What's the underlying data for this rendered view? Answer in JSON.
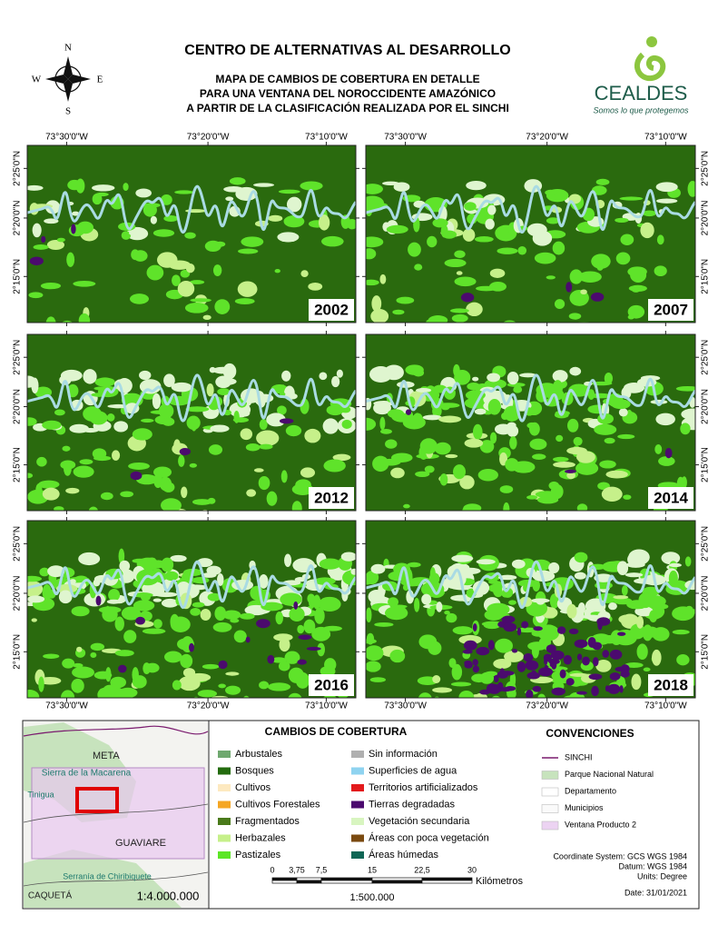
{
  "header": {
    "title": "CENTRO DE ALTERNATIVAS AL DESARROLLO",
    "subtitle": [
      "MAPA DE CAMBIOS DE COBERTURA EN DETALLE",
      "PARA UNA VENTANA DEL NOROCCIDENTE AMAZÓNICO",
      "A PARTIR DE LA CLASIFICACIÓN REALIZADA POR EL SINCHI"
    ]
  },
  "compass": {
    "n": "N",
    "s": "S",
    "e": "E",
    "w": "W"
  },
  "logo": {
    "name": "CEALDES",
    "slogan": "Somos lo que protegemos"
  },
  "maps": {
    "longitude_labels": [
      "73°30'0\"W",
      "73°20'0\"W",
      "73°10'0\"W"
    ],
    "latitude_labels": [
      "2°25'0\"N",
      "2°20'0\"N",
      "2°15'0\"N"
    ],
    "panels": [
      {
        "year": "2002"
      },
      {
        "year": "2007"
      },
      {
        "year": "2012"
      },
      {
        "year": "2014"
      },
      {
        "year": "2016"
      },
      {
        "year": "2018"
      }
    ]
  },
  "legend": {
    "title": "CAMBIOS DE COBERTURA",
    "items": [
      {
        "label": "Arbustales",
        "color": "#6fa86f"
      },
      {
        "label": "Bosques",
        "color": "#236b0e"
      },
      {
        "label": "Cultivos",
        "color": "#fde9c0"
      },
      {
        "label": "Cultivos Forestales",
        "color": "#f5a623"
      },
      {
        "label": "Fragmentados",
        "color": "#4a7a1a"
      },
      {
        "label": "Herbazales",
        "color": "#c6f08a"
      },
      {
        "label": "Pastizales",
        "color": "#5ce626"
      },
      {
        "label": "Sin información",
        "color": "#b0b0b0"
      },
      {
        "label": "Superficies de agua",
        "color": "#8fd3f0"
      },
      {
        "label": "Territorios artificializados",
        "color": "#e31a1c"
      },
      {
        "label": "Tierras degradadas",
        "color": "#4b0a6e"
      },
      {
        "label": "Vegetación secundaria",
        "color": "#d8f5c0"
      },
      {
        "label": "Áreas con poca vegetación",
        "color": "#7a4a10"
      },
      {
        "label": "Áreas húmedas",
        "color": "#0e6655"
      }
    ]
  },
  "conventions": {
    "title": "CONVENCIONES",
    "items": [
      {
        "label": "SINCHI",
        "color": "#7a1a6e",
        "symbol": "line"
      },
      {
        "label": "Parque Nacional Natural",
        "color": "#c7e3bd",
        "symbol": "box"
      },
      {
        "label": "Departamento",
        "color": "#ffffff",
        "symbol": "box"
      },
      {
        "label": "Municipios",
        "color": "#fafafa",
        "symbol": "box"
      },
      {
        "label": "Ventana Producto 2",
        "color": "#ecd3f2",
        "symbol": "box"
      }
    ],
    "coordinate_system": "Coordinate System: GCS WGS 1984",
    "datum": "Datum: WGS 1984",
    "units": "Units: Degree",
    "date": "Date: 31/01/2021"
  },
  "scale_bar": {
    "ticks": [
      "0",
      "3,75",
      "7,5",
      "15",
      "22,5",
      "30"
    ],
    "unit": "Kilómetros",
    "ratio": "1:500.000"
  },
  "inset": {
    "labels": [
      "META",
      "Sierra de la Macarena",
      "Tinigua",
      "GUAVIARE",
      "Serranía de Chiribiquete",
      "CAQUETÁ"
    ],
    "scale": "1:4.000.000"
  }
}
